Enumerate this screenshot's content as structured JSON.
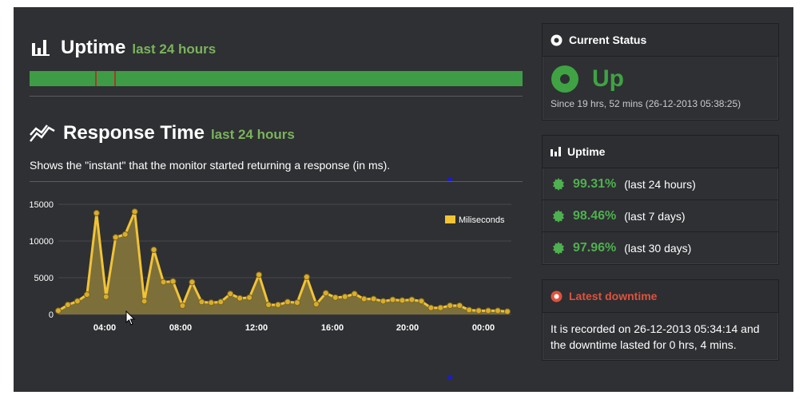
{
  "uptime_section": {
    "title": "Uptime",
    "subtitle": "last 24 hours",
    "bar": {
      "up_color": "#3f9c46",
      "down_color": "#a23b2c",
      "downtime_marks_fraction": [
        0.133,
        0.171
      ]
    }
  },
  "response_section": {
    "title": "Response Time",
    "subtitle": "last 24 hours",
    "description": "Shows the \"instant\" that the monitor started returning a response (in ms)."
  },
  "chart_data": {
    "type": "area",
    "x_tick_labels": [
      "04:00",
      "08:00",
      "12:00",
      "16:00",
      "20:00",
      "00:00"
    ],
    "y_ticks": [
      0,
      5000,
      10000,
      15000
    ],
    "ylim": [
      0,
      15000
    ],
    "legend": "Miliseconds",
    "legend_position": "top-right",
    "grid": true,
    "series_color": "#f2c335",
    "series": [
      {
        "name": "Miliseconds",
        "values": [
          500,
          1300,
          1800,
          2700,
          13800,
          2400,
          10500,
          10900,
          14000,
          1800,
          8800,
          4400,
          4500,
          1200,
          4400,
          1700,
          1600,
          1700,
          2800,
          2200,
          2300,
          5400,
          1300,
          1300,
          1700,
          1600,
          5100,
          1400,
          2900,
          2300,
          2400,
          2800,
          2100,
          2100,
          1800,
          2000,
          1900,
          2000,
          1800,
          900,
          900,
          1200,
          1200,
          600,
          500,
          500,
          500,
          400
        ]
      }
    ]
  },
  "current_status": {
    "title": "Current Status",
    "status": "Up",
    "since": "Since 19 hrs, 52 mins (26-12-2013 05:38:25)",
    "color": "#3fa343"
  },
  "uptime_panel": {
    "title": "Uptime",
    "rows": [
      {
        "pct": "99.31%",
        "period": "(last 24 hours)"
      },
      {
        "pct": "98.46%",
        "period": "(last 7 days)"
      },
      {
        "pct": "97.96%",
        "period": "(last 30 days)"
      }
    ]
  },
  "latest_downtime": {
    "title": "Latest downtime",
    "text": "It is recorded on 26-12-2013 05:34:14 and the downtime lasted for 0 hrs, 4 mins.",
    "color": "#e0523d"
  }
}
